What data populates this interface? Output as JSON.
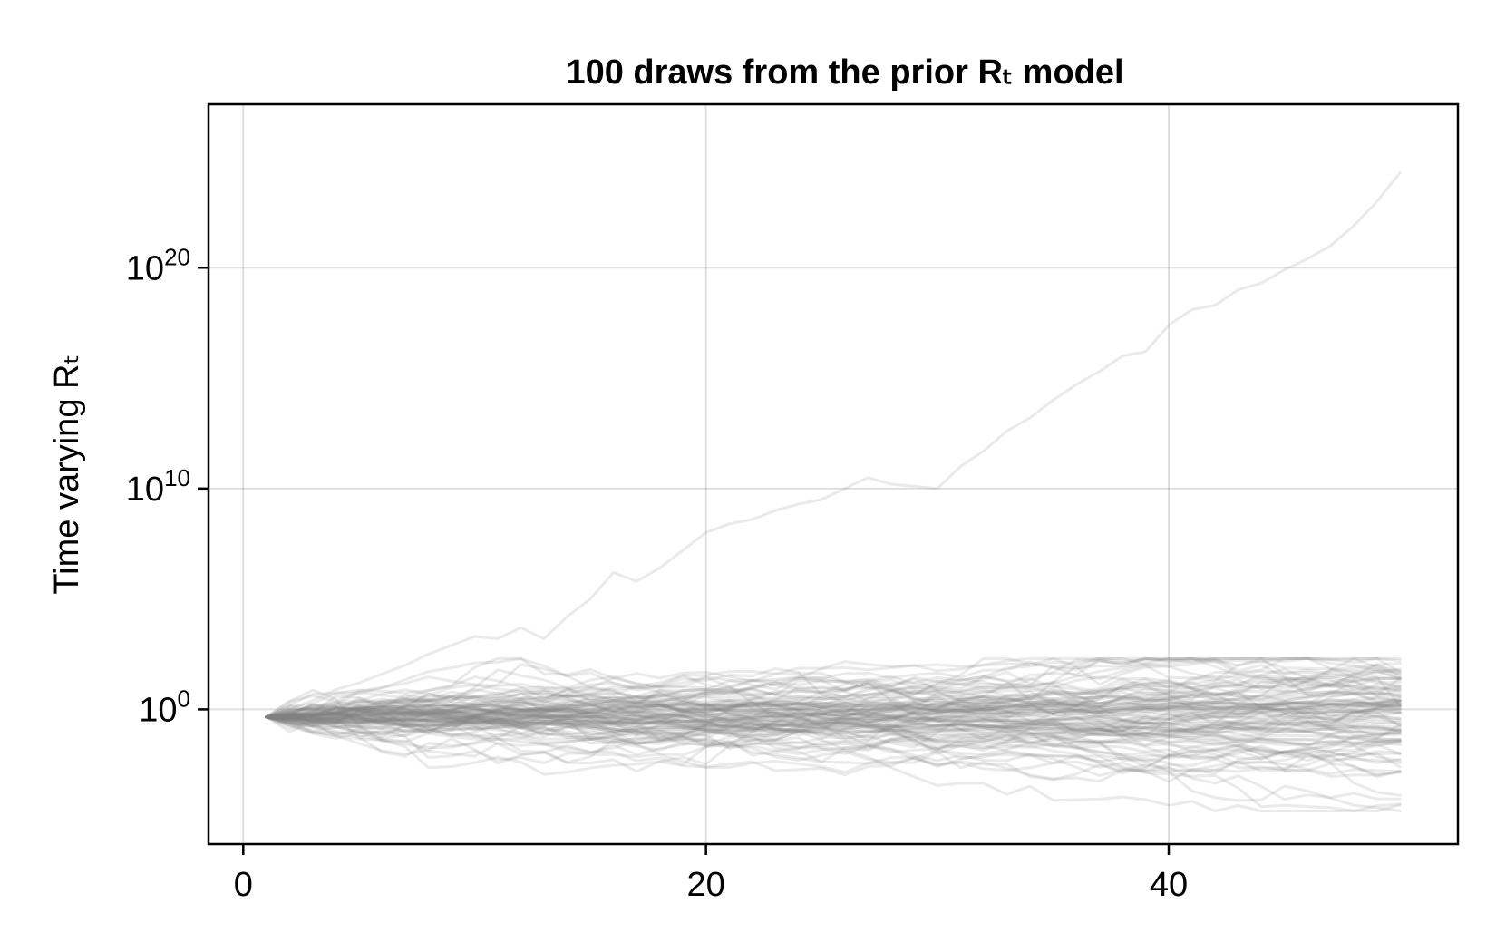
{
  "chart_data": {
    "type": "line",
    "title": "100 draws from the prior Rₜ model",
    "xlabel": "",
    "ylabel": "Time varying Rₜ",
    "yscale": "log10",
    "xlim": [
      -1.5,
      52.5
    ],
    "ylim_log10": [
      -6.1,
      27.4
    ],
    "x_ticks": [
      0,
      20,
      40
    ],
    "y_ticks": [
      {
        "base": "10",
        "exp": "0",
        "value": 1
      },
      {
        "base": "10",
        "exp": "10",
        "value": 10000000000.0
      },
      {
        "base": "10",
        "exp": "20",
        "value": 1e+20
      }
    ],
    "grid": true,
    "legend": "none",
    "line_color": "#808080",
    "n_draws": 100,
    "x": [
      1,
      2,
      3,
      4,
      5,
      6,
      7,
      8,
      9,
      10,
      11,
      12,
      13,
      14,
      15,
      16,
      17,
      18,
      19,
      20,
      21,
      22,
      23,
      24,
      25,
      26,
      27,
      28,
      29,
      30,
      31,
      32,
      33,
      34,
      35,
      36,
      37,
      38,
      39,
      40,
      41,
      42,
      43,
      44,
      45,
      46,
      47,
      48,
      49,
      50
    ],
    "outlier_draw_log10": [
      -0.3,
      0.0,
      0.4,
      0.9,
      1.2,
      1.6,
      2.0,
      2.5,
      2.9,
      3.3,
      3.2,
      3.7,
      3.2,
      4.2,
      5.0,
      6.2,
      5.8,
      6.4,
      7.2,
      8.0,
      8.4,
      8.6,
      9.0,
      9.3,
      9.5,
      10.0,
      10.5,
      10.2,
      10.1,
      10.0,
      11.0,
      11.7,
      12.6,
      13.2,
      14.0,
      14.7,
      15.3,
      16.0,
      16.2,
      17.4,
      18.1,
      18.3,
      19.0,
      19.3,
      19.9,
      20.4,
      21.0,
      21.9,
      23.0,
      24.3
    ],
    "outer_envelope_log10": {
      "upper_max": 2.3,
      "lower_min": -4.6
    },
    "draw_seed": 20240
  }
}
